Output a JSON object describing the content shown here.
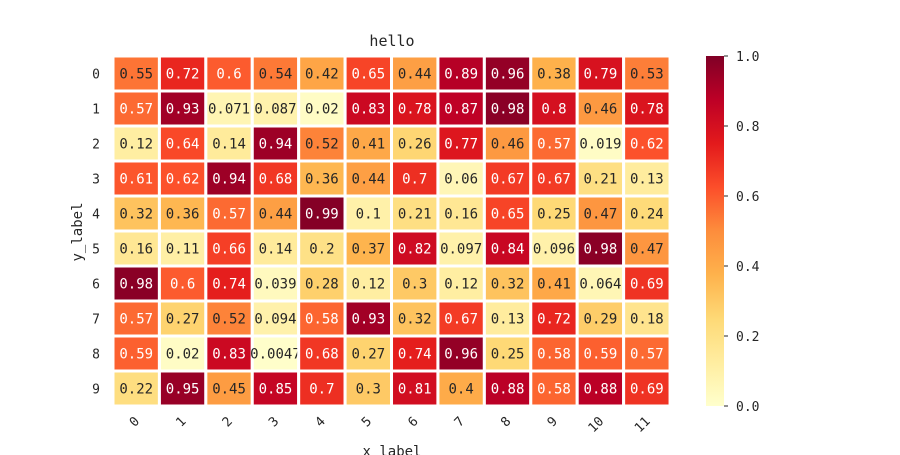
{
  "chart_data": {
    "type": "heatmap",
    "title": "hello",
    "xlabel": "x_label",
    "ylabel": "y_label",
    "x_ticks": [
      "0",
      "1",
      "2",
      "3",
      "4",
      "5",
      "6",
      "7",
      "8",
      "9",
      "10",
      "11"
    ],
    "y_ticks": [
      "0",
      "1",
      "2",
      "3",
      "4",
      "5",
      "6",
      "7",
      "8",
      "9"
    ],
    "values": [
      [
        0.55,
        0.72,
        0.6,
        0.54,
        0.42,
        0.65,
        0.44,
        0.89,
        0.96,
        0.38,
        0.79,
        0.53
      ],
      [
        0.57,
        0.93,
        0.071,
        0.087,
        0.02,
        0.83,
        0.78,
        0.87,
        0.98,
        0.8,
        0.46,
        0.78
      ],
      [
        0.12,
        0.64,
        0.14,
        0.94,
        0.52,
        0.41,
        0.26,
        0.77,
        0.46,
        0.57,
        0.019,
        0.62
      ],
      [
        0.61,
        0.62,
        0.94,
        0.68,
        0.36,
        0.44,
        0.7,
        0.06,
        0.67,
        0.67,
        0.21,
        0.13
      ],
      [
        0.32,
        0.36,
        0.57,
        0.44,
        0.99,
        0.1,
        0.21,
        0.16,
        0.65,
        0.25,
        0.47,
        0.24
      ],
      [
        0.16,
        0.11,
        0.66,
        0.14,
        0.2,
        0.37,
        0.82,
        0.097,
        0.84,
        0.096,
        0.98,
        0.47
      ],
      [
        0.98,
        0.6,
        0.74,
        0.039,
        0.28,
        0.12,
        0.3,
        0.12,
        0.32,
        0.41,
        0.064,
        0.69
      ],
      [
        0.57,
        0.27,
        0.52,
        0.094,
        0.58,
        0.93,
        0.32,
        0.67,
        0.13,
        0.72,
        0.29,
        0.18
      ],
      [
        0.59,
        0.02,
        0.83,
        0.0047,
        0.68,
        0.27,
        0.74,
        0.96,
        0.25,
        0.58,
        0.59,
        0.57
      ],
      [
        0.22,
        0.95,
        0.45,
        0.85,
        0.7,
        0.3,
        0.81,
        0.4,
        0.88,
        0.58,
        0.88,
        0.69
      ]
    ],
    "labels": [
      [
        "0.55",
        "0.72",
        "0.6",
        "0.54",
        "0.42",
        "0.65",
        "0.44",
        "0.89",
        "0.96",
        "0.38",
        "0.79",
        "0.53"
      ],
      [
        "0.57",
        "0.93",
        "0.071",
        "0.087",
        "0.02",
        "0.83",
        "0.78",
        "0.87",
        "0.98",
        "0.8",
        "0.46",
        "0.78"
      ],
      [
        "0.12",
        "0.64",
        "0.14",
        "0.94",
        "0.52",
        "0.41",
        "0.26",
        "0.77",
        "0.46",
        "0.57",
        "0.019",
        "0.62"
      ],
      [
        "0.61",
        "0.62",
        "0.94",
        "0.68",
        "0.36",
        "0.44",
        "0.7",
        "0.06",
        "0.67",
        "0.67",
        "0.21",
        "0.13"
      ],
      [
        "0.32",
        "0.36",
        "0.57",
        "0.44",
        "0.99",
        "0.1",
        "0.21",
        "0.16",
        "0.65",
        "0.25",
        "0.47",
        "0.24"
      ],
      [
        "0.16",
        "0.11",
        "0.66",
        "0.14",
        "0.2",
        "0.37",
        "0.82",
        "0.097",
        "0.84",
        "0.096",
        "0.98",
        "0.47"
      ],
      [
        "0.98",
        "0.6",
        "0.74",
        "0.039",
        "0.28",
        "0.12",
        "0.3",
        "0.12",
        "0.32",
        "0.41",
        "0.064",
        "0.69"
      ],
      [
        "0.57",
        "0.27",
        "0.52",
        "0.094",
        "0.58",
        "0.93",
        "0.32",
        "0.67",
        "0.13",
        "0.72",
        "0.29",
        "0.18"
      ],
      [
        "0.59",
        "0.02",
        "0.83",
        "0.0047",
        "0.68",
        "0.27",
        "0.74",
        "0.96",
        "0.25",
        "0.58",
        "0.59",
        "0.57"
      ],
      [
        "0.22",
        "0.95",
        "0.45",
        "0.85",
        "0.7",
        "0.3",
        "0.81",
        "0.4",
        "0.88",
        "0.58",
        "0.88",
        "0.69"
      ]
    ],
    "colormap": "YlOrRd",
    "vmin": 0.0,
    "vmax": 1.0,
    "colorbar_ticks": [
      "0.0",
      "0.2",
      "0.4",
      "0.6",
      "0.8",
      "1.0"
    ],
    "colorbar_tick_values": [
      0.0,
      0.2,
      0.4,
      0.6,
      0.8,
      1.0
    ],
    "cell_border_color": "#ffffff"
  }
}
